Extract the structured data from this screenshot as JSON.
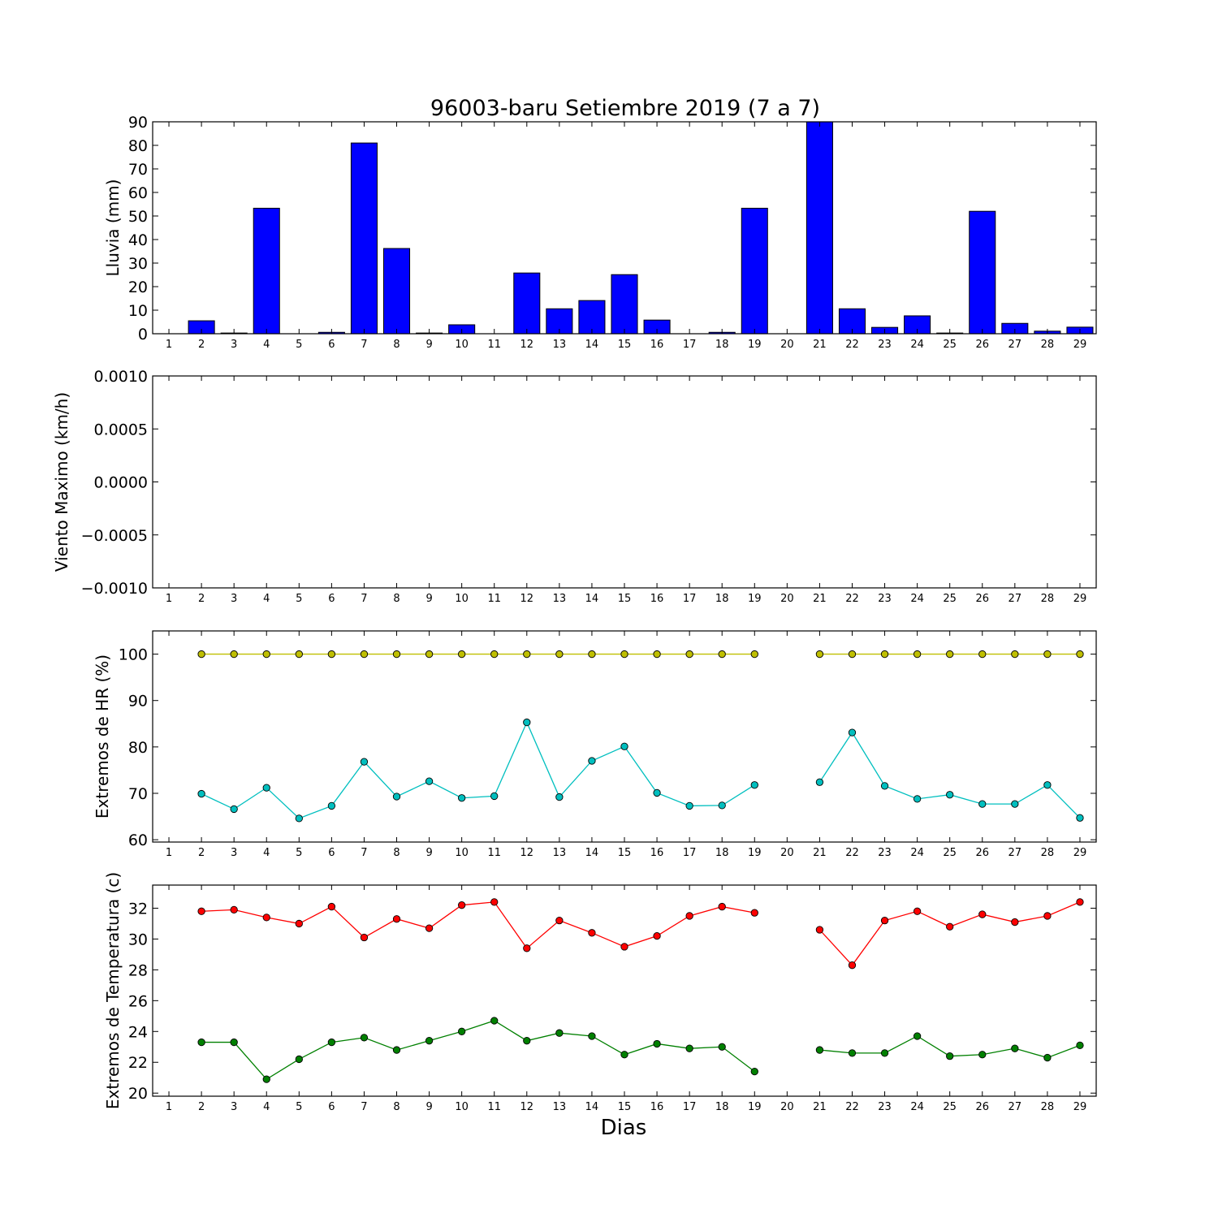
{
  "figure": {
    "title": "96003-baru Setiembre 2019  (7 a 7)",
    "xlabel": "Dias"
  },
  "chart_data": [
    {
      "type": "bar",
      "ylabel": "Lluvia (mm)",
      "ylim": [
        0,
        90
      ],
      "yticks": [
        "0",
        "10",
        "20",
        "30",
        "40",
        "50",
        "60",
        "70",
        "80",
        "90"
      ],
      "ytick_values": [
        0,
        10,
        20,
        30,
        40,
        50,
        60,
        70,
        80,
        90
      ],
      "x": [
        1,
        2,
        3,
        4,
        5,
        6,
        7,
        8,
        9,
        10,
        11,
        12,
        13,
        14,
        15,
        16,
        17,
        18,
        19,
        20,
        21,
        22,
        23,
        24,
        25,
        26,
        27,
        28,
        29
      ],
      "xticks": [
        "1",
        "2",
        "3",
        "4",
        "5",
        "6",
        "7",
        "8",
        "9",
        "10",
        "11",
        "12",
        "13",
        "14",
        "15",
        "16",
        "17",
        "18",
        "19",
        "20",
        "21",
        "22",
        "23",
        "24",
        "25",
        "26",
        "27",
        "28",
        "29"
      ],
      "values": [
        0,
        5.5,
        0.3,
        53.3,
        0,
        0.6,
        81,
        36.2,
        0.3,
        3.8,
        0,
        25.8,
        10.6,
        14.1,
        25.1,
        5.8,
        0,
        0.6,
        53.3,
        0,
        90,
        10.6,
        2.7,
        7.6,
        0.3,
        52,
        4.4,
        1.1,
        2.8
      ],
      "series": [
        {
          "color": "#0000ff"
        }
      ]
    },
    {
      "type": "line",
      "ylabel": "Viento Maximo (km/h)",
      "ylim": [
        -0.001,
        0.001
      ],
      "yticks": [
        "−0.0010",
        "−0.0005",
        "0.0000",
        "0.0005",
        "0.0010"
      ],
      "ytick_values": [
        -0.001,
        -0.0005,
        0,
        0.0005,
        0.001
      ],
      "xticks": [
        "1",
        "2",
        "3",
        "4",
        "5",
        "6",
        "7",
        "8",
        "9",
        "10",
        "11",
        "12",
        "13",
        "14",
        "15",
        "16",
        "17",
        "18",
        "19",
        "20",
        "21",
        "22",
        "23",
        "24",
        "25",
        "26",
        "27",
        "28",
        "29"
      ],
      "series": []
    },
    {
      "type": "line",
      "ylabel": "Extremos de HR (%)",
      "ylim": [
        59.5,
        105
      ],
      "yticks": [
        "60",
        "70",
        "80",
        "90",
        "100"
      ],
      "ytick_values": [
        60,
        70,
        80,
        90,
        100
      ],
      "x": [
        1,
        2,
        3,
        4,
        5,
        6,
        7,
        8,
        9,
        10,
        11,
        12,
        13,
        14,
        15,
        16,
        17,
        18,
        19,
        20,
        21,
        22,
        23,
        24,
        25,
        26,
        27,
        28,
        29
      ],
      "xticks": [
        "1",
        "2",
        "3",
        "4",
        "5",
        "6",
        "7",
        "8",
        "9",
        "10",
        "11",
        "12",
        "13",
        "14",
        "15",
        "16",
        "17",
        "18",
        "19",
        "20",
        "21",
        "22",
        "23",
        "24",
        "25",
        "26",
        "27",
        "28",
        "29"
      ],
      "series": [
        {
          "color": "#bfbf00",
          "values": [
            null,
            100,
            100,
            100,
            100,
            100,
            100,
            100,
            100,
            100,
            100,
            100,
            100,
            100,
            100,
            100,
            100,
            100,
            100,
            null,
            100,
            100,
            100,
            100,
            100,
            100,
            100,
            100,
            100
          ]
        },
        {
          "color": "#00bfbf",
          "values": [
            null,
            69.9,
            66.6,
            71.2,
            64.6,
            67.3,
            76.8,
            69.3,
            72.6,
            69,
            69.4,
            85.3,
            69.2,
            77,
            80.1,
            70.1,
            67.3,
            67.4,
            71.8,
            null,
            72.4,
            83.1,
            71.6,
            68.8,
            69.7,
            67.7,
            67.7,
            71.8,
            64.7
          ]
        }
      ]
    },
    {
      "type": "line",
      "ylabel": "Extremos de Temperatura (c)",
      "ylim": [
        19.8,
        33.5
      ],
      "yticks": [
        "20",
        "22",
        "24",
        "26",
        "28",
        "30",
        "32"
      ],
      "ytick_values": [
        20,
        22,
        24,
        26,
        28,
        30,
        32
      ],
      "x": [
        1,
        2,
        3,
        4,
        5,
        6,
        7,
        8,
        9,
        10,
        11,
        12,
        13,
        14,
        15,
        16,
        17,
        18,
        19,
        20,
        21,
        22,
        23,
        24,
        25,
        26,
        27,
        28,
        29
      ],
      "xticks": [
        "1",
        "2",
        "3",
        "4",
        "5",
        "6",
        "7",
        "8",
        "9",
        "10",
        "11",
        "12",
        "13",
        "14",
        "15",
        "16",
        "17",
        "18",
        "19",
        "20",
        "21",
        "22",
        "23",
        "24",
        "25",
        "26",
        "27",
        "28",
        "29"
      ],
      "series": [
        {
          "color": "#ff0000",
          "values": [
            null,
            31.8,
            31.9,
            31.4,
            31,
            32.1,
            30.1,
            31.3,
            30.7,
            32.2,
            32.4,
            29.4,
            31.2,
            30.4,
            29.5,
            30.2,
            31.5,
            32.1,
            31.7,
            null,
            30.6,
            28.3,
            31.2,
            31.8,
            30.8,
            31.6,
            31.1,
            31.5,
            32.4
          ]
        },
        {
          "color": "#008000",
          "values": [
            null,
            23.3,
            23.3,
            20.9,
            22.2,
            23.3,
            23.6,
            22.8,
            23.4,
            24,
            24.7,
            23.4,
            23.9,
            23.7,
            22.5,
            23.2,
            22.9,
            23,
            21.4,
            null,
            22.8,
            22.6,
            22.6,
            23.7,
            22.4,
            22.5,
            22.9,
            22.3,
            23.1
          ]
        }
      ]
    }
  ]
}
